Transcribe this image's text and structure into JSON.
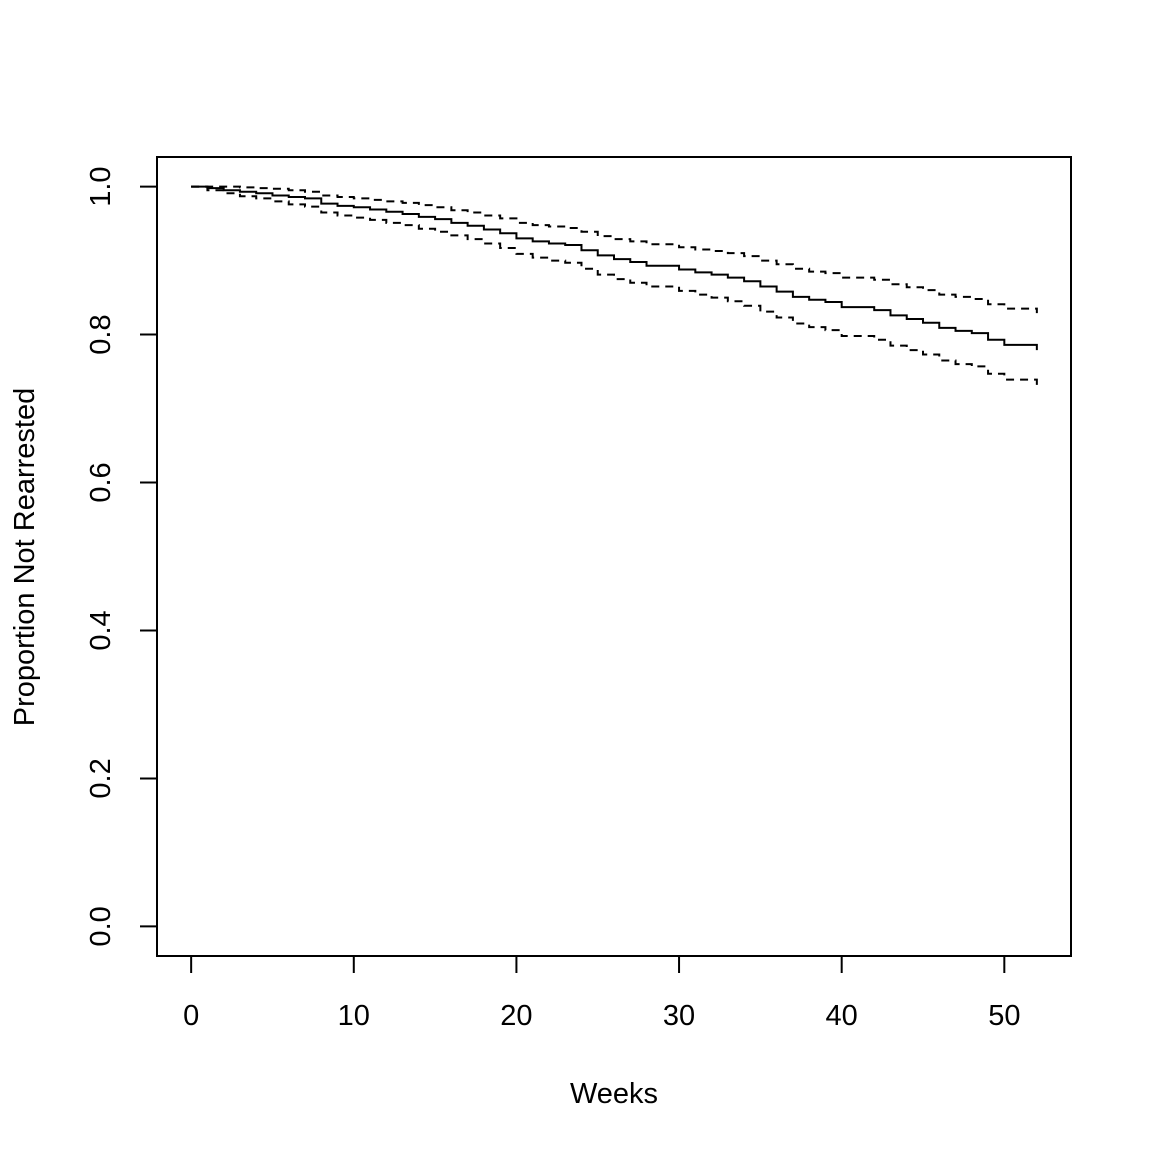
{
  "chart_data": {
    "type": "line",
    "title": "",
    "xlabel": "Weeks",
    "ylabel": "Proportion Not Rearrested",
    "xlim": [
      -2.1,
      54.1
    ],
    "ylim": [
      -0.04,
      1.04
    ],
    "x_ticks": [
      0,
      10,
      20,
      30,
      40,
      50
    ],
    "x_tick_labels": [
      "0",
      "10",
      "20",
      "30",
      "40",
      "50"
    ],
    "y_ticks": [
      0.0,
      0.2,
      0.4,
      0.6,
      0.8,
      1.0
    ],
    "y_tick_labels": [
      "0.0",
      "0.2",
      "0.4",
      "0.6",
      "0.8",
      "1.0"
    ],
    "grid": false,
    "legend": "none",
    "step": true,
    "colors": {
      "line": "#000000",
      "background": "#ffffff"
    },
    "series": [
      {
        "style": "solid",
        "x": [
          0,
          1,
          2,
          3,
          4,
          5,
          6,
          7,
          8,
          9,
          10,
          11,
          12,
          13,
          14,
          15,
          16,
          17,
          18,
          19,
          20,
          21,
          22,
          23,
          24,
          25,
          26,
          27,
          28,
          30,
          31,
          32,
          33,
          34,
          35,
          36,
          37,
          38,
          39,
          40,
          42,
          43,
          44,
          45,
          46,
          47,
          48,
          49,
          50,
          52
        ],
        "y": [
          1.0,
          0.998,
          0.995,
          0.993,
          0.991,
          0.988,
          0.986,
          0.984,
          0.977,
          0.974,
          0.972,
          0.969,
          0.966,
          0.963,
          0.959,
          0.956,
          0.951,
          0.947,
          0.942,
          0.937,
          0.93,
          0.926,
          0.923,
          0.921,
          0.914,
          0.907,
          0.902,
          0.898,
          0.893,
          0.888,
          0.884,
          0.881,
          0.877,
          0.872,
          0.865,
          0.858,
          0.851,
          0.847,
          0.844,
          0.837,
          0.833,
          0.826,
          0.821,
          0.816,
          0.809,
          0.805,
          0.802,
          0.793,
          0.786,
          0.779
        ]
      },
      {
        "style": "dashed",
        "x": [
          0,
          1,
          2,
          3,
          4,
          5,
          6,
          7,
          8,
          9,
          10,
          11,
          12,
          13,
          14,
          15,
          16,
          17,
          18,
          19,
          20,
          21,
          22,
          23,
          24,
          25,
          26,
          27,
          28,
          30,
          31,
          32,
          33,
          34,
          35,
          36,
          37,
          38,
          39,
          40,
          42,
          43,
          44,
          45,
          46,
          47,
          48,
          49,
          50,
          52
        ],
        "y": [
          1.0,
          1.0,
          1.0,
          0.999,
          0.998,
          0.997,
          0.995,
          0.993,
          0.988,
          0.986,
          0.984,
          0.982,
          0.98,
          0.978,
          0.975,
          0.972,
          0.968,
          0.965,
          0.961,
          0.957,
          0.951,
          0.948,
          0.946,
          0.944,
          0.939,
          0.933,
          0.929,
          0.926,
          0.922,
          0.918,
          0.915,
          0.913,
          0.91,
          0.906,
          0.9,
          0.895,
          0.889,
          0.885,
          0.883,
          0.877,
          0.874,
          0.868,
          0.864,
          0.86,
          0.854,
          0.851,
          0.848,
          0.841,
          0.835,
          0.829
        ]
      },
      {
        "style": "dashed",
        "x": [
          0,
          1,
          2,
          3,
          4,
          5,
          6,
          7,
          8,
          9,
          10,
          11,
          12,
          13,
          14,
          15,
          16,
          17,
          18,
          19,
          20,
          21,
          22,
          23,
          24,
          25,
          26,
          27,
          28,
          30,
          31,
          32,
          33,
          34,
          35,
          36,
          37,
          38,
          39,
          40,
          42,
          43,
          44,
          45,
          46,
          47,
          48,
          49,
          50,
          52
        ],
        "y": [
          1.0,
          0.995,
          0.991,
          0.987,
          0.984,
          0.98,
          0.976,
          0.973,
          0.965,
          0.961,
          0.958,
          0.955,
          0.951,
          0.948,
          0.943,
          0.939,
          0.934,
          0.929,
          0.923,
          0.917,
          0.909,
          0.904,
          0.9,
          0.897,
          0.889,
          0.881,
          0.875,
          0.87,
          0.865,
          0.859,
          0.854,
          0.85,
          0.845,
          0.839,
          0.831,
          0.823,
          0.815,
          0.81,
          0.806,
          0.798,
          0.793,
          0.785,
          0.779,
          0.773,
          0.765,
          0.76,
          0.757,
          0.747,
          0.739,
          0.731
        ]
      }
    ]
  }
}
